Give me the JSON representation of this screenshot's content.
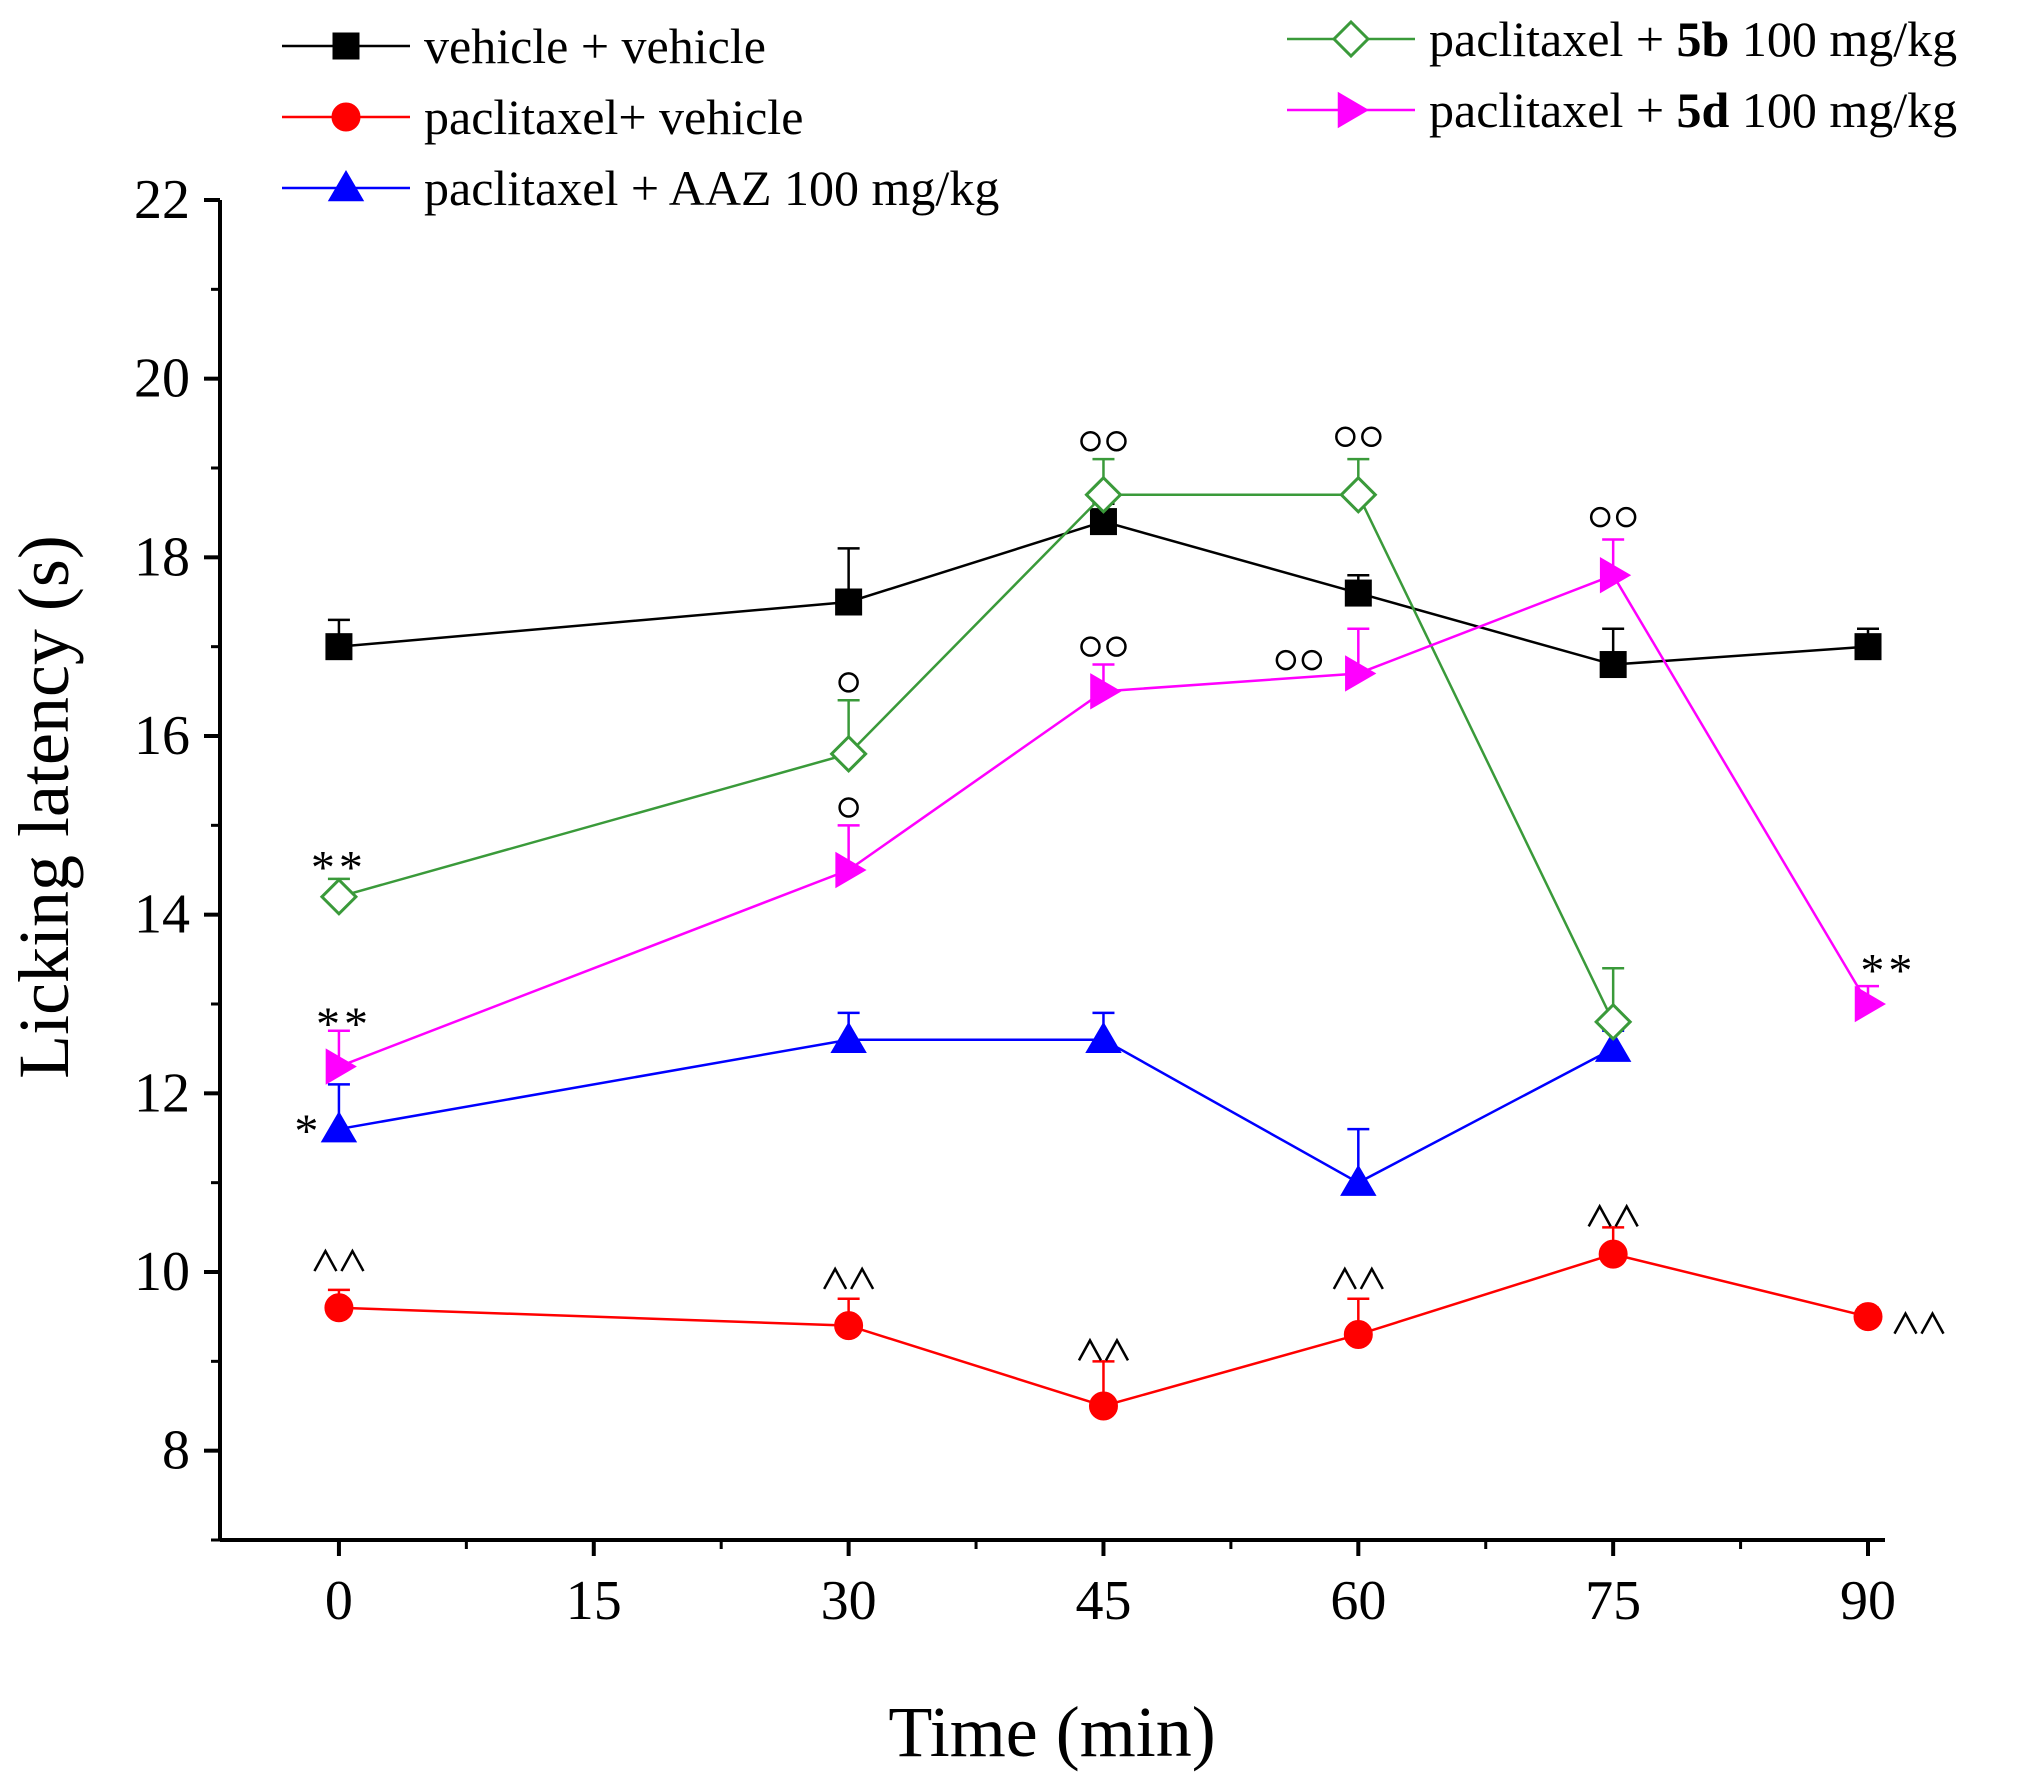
{
  "chart_data": {
    "type": "line",
    "xlabel": "Time (min)",
    "ylabel": "Licking latency (s)",
    "xlim": [
      -7,
      91
    ],
    "ylim": [
      7,
      22
    ],
    "xticks": [
      0,
      15,
      30,
      45,
      60,
      75,
      90
    ],
    "xtick_labels": [
      "0",
      "15",
      "30",
      "45",
      "60",
      "75",
      "90"
    ],
    "yticks": [
      8,
      10,
      12,
      14,
      16,
      18,
      20,
      22
    ],
    "ytick_labels": [
      "8",
      "10",
      "12",
      "14",
      "16",
      "18",
      "20",
      "22"
    ],
    "series": [
      {
        "name": "vehicle + vehicle",
        "legend_pre": "vehicle + vehicle",
        "legend_bold": "",
        "legend_post": "",
        "color": "#000000",
        "marker": "square",
        "filled": true,
        "x": [
          0,
          30,
          45,
          60,
          75,
          90
        ],
        "y": [
          17.0,
          17.5,
          18.4,
          17.6,
          16.8,
          17.0
        ],
        "err": [
          0.3,
          0.6,
          0.2,
          0.2,
          0.4,
          0.2
        ]
      },
      {
        "name": "paclitaxel+ vehicle",
        "legend_pre": "paclitaxel+ vehicle",
        "legend_bold": "",
        "legend_post": "",
        "color": "#ff0000",
        "marker": "circle",
        "filled": true,
        "x": [
          0,
          30,
          45,
          60,
          75,
          90
        ],
        "y": [
          9.6,
          9.4,
          8.5,
          9.3,
          10.2,
          9.5
        ],
        "err": [
          0.2,
          0.3,
          0.5,
          0.4,
          0.3,
          0.1
        ]
      },
      {
        "name": "paclitaxel + AAZ 100 mg/kg",
        "legend_pre": "paclitaxel + AAZ 100 mg/kg",
        "legend_bold": "",
        "legend_post": "",
        "color": "#0000ff",
        "marker": "triangle-up",
        "filled": true,
        "x": [
          0,
          30,
          45,
          60,
          75
        ],
        "y": [
          11.6,
          12.6,
          12.6,
          11.0,
          12.5
        ],
        "err": [
          0.5,
          0.3,
          0.3,
          0.6,
          0.2
        ]
      },
      {
        "name": "paclitaxel + 5b 100 mg/kg",
        "legend_pre": "paclitaxel + ",
        "legend_bold": "5b",
        "legend_post": " 100 mg/kg",
        "color": "#3a9a3a",
        "marker": "diamond",
        "filled": false,
        "x": [
          0,
          30,
          45,
          60,
          75
        ],
        "y": [
          14.2,
          15.8,
          18.7,
          18.7,
          12.8
        ],
        "err": [
          0.2,
          0.6,
          0.4,
          0.4,
          0.6
        ]
      },
      {
        "name": "paclitaxel + 5d 100 mg/kg",
        "legend_pre": "paclitaxel + ",
        "legend_bold": "5d",
        "legend_post": " 100 mg/kg",
        "color": "#ff00ff",
        "marker": "triangle-right",
        "filled": true,
        "x": [
          0,
          30,
          45,
          60,
          75,
          90
        ],
        "y": [
          12.3,
          14.5,
          16.5,
          16.7,
          17.8,
          13.0
        ],
        "err": [
          0.4,
          0.5,
          0.3,
          0.5,
          0.4,
          0.2
        ]
      }
    ],
    "annotations": [
      {
        "text": "^^",
        "x": 0,
        "y": 10.1,
        "kind": "caret"
      },
      {
        "text": "^^",
        "x": 30,
        "y": 9.9,
        "kind": "caret"
      },
      {
        "text": "^^",
        "x": 45,
        "y": 9.1,
        "kind": "caret"
      },
      {
        "text": "^^",
        "x": 60,
        "y": 9.9,
        "kind": "caret"
      },
      {
        "text": "^^",
        "x": 75,
        "y": 10.6,
        "kind": "caret"
      },
      {
        "text": "^^",
        "x": 93,
        "y": 9.4,
        "kind": "caret"
      },
      {
        "text": "**",
        "x": 0,
        "y": 14.55,
        "kind": "star"
      },
      {
        "text": "**",
        "x": 0.3,
        "y": 12.8,
        "kind": "star"
      },
      {
        "text": "*",
        "x": -1.8,
        "y": 11.6,
        "kind": "star"
      },
      {
        "text": "**",
        "x": 91.2,
        "y": 13.4,
        "kind": "star"
      },
      {
        "text": "o",
        "x": 30,
        "y": 16.6,
        "kind": "circle"
      },
      {
        "text": "o",
        "x": 30,
        "y": 15.2,
        "kind": "circle"
      },
      {
        "text": "oo",
        "x": 45,
        "y": 19.3,
        "kind": "circle"
      },
      {
        "text": "oo",
        "x": 60,
        "y": 19.35,
        "kind": "circle"
      },
      {
        "text": "oo",
        "x": 45,
        "y": 17.0,
        "kind": "circle"
      },
      {
        "text": "oo",
        "x": 56.5,
        "y": 16.85,
        "kind": "circle"
      },
      {
        "text": "oo",
        "x": 75,
        "y": 18.45,
        "kind": "circle"
      }
    ]
  }
}
